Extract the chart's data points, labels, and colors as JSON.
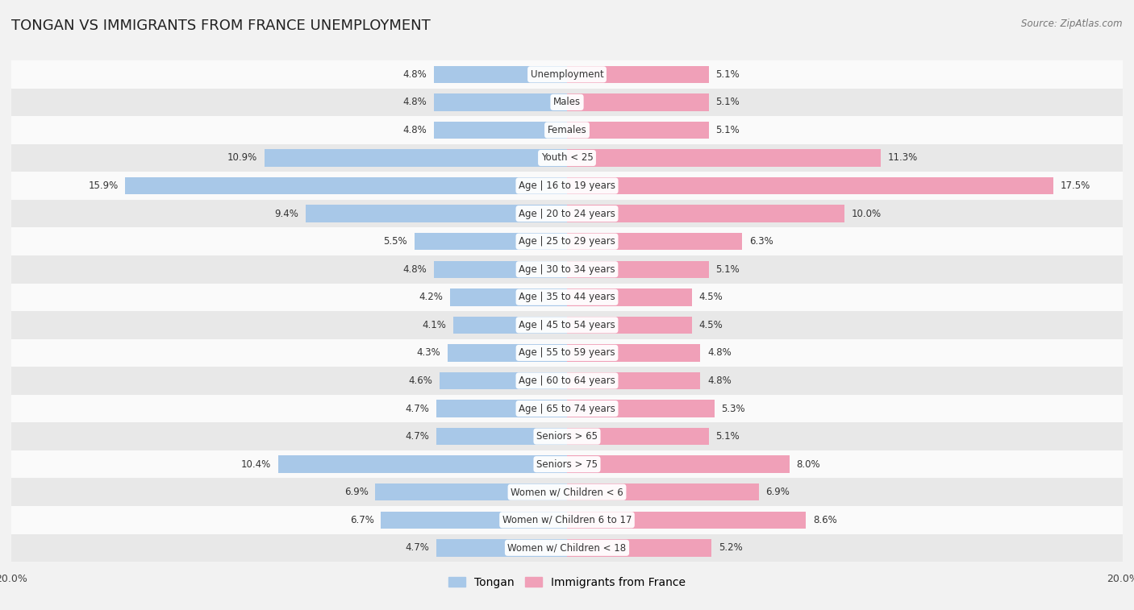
{
  "title": "TONGAN VS IMMIGRANTS FROM FRANCE UNEMPLOYMENT",
  "source": "Source: ZipAtlas.com",
  "categories": [
    "Unemployment",
    "Males",
    "Females",
    "Youth < 25",
    "Age | 16 to 19 years",
    "Age | 20 to 24 years",
    "Age | 25 to 29 years",
    "Age | 30 to 34 years",
    "Age | 35 to 44 years",
    "Age | 45 to 54 years",
    "Age | 55 to 59 years",
    "Age | 60 to 64 years",
    "Age | 65 to 74 years",
    "Seniors > 65",
    "Seniors > 75",
    "Women w/ Children < 6",
    "Women w/ Children 6 to 17",
    "Women w/ Children < 18"
  ],
  "tongan": [
    4.8,
    4.8,
    4.8,
    10.9,
    15.9,
    9.4,
    5.5,
    4.8,
    4.2,
    4.1,
    4.3,
    4.6,
    4.7,
    4.7,
    10.4,
    6.9,
    6.7,
    4.7
  ],
  "france": [
    5.1,
    5.1,
    5.1,
    11.3,
    17.5,
    10.0,
    6.3,
    5.1,
    4.5,
    4.5,
    4.8,
    4.8,
    5.3,
    5.1,
    8.0,
    6.9,
    8.6,
    5.2
  ],
  "tongan_color": "#a8c8e8",
  "france_color": "#f0a0b8",
  "tongan_label": "Tongan",
  "france_label": "Immigrants from France",
  "bg_color": "#f2f2f2",
  "row_bg_light": "#fafafa",
  "row_bg_dark": "#e8e8e8",
  "xlim": 20.0,
  "label_fontsize": 8.5,
  "title_fontsize": 13,
  "bar_height": 0.62
}
